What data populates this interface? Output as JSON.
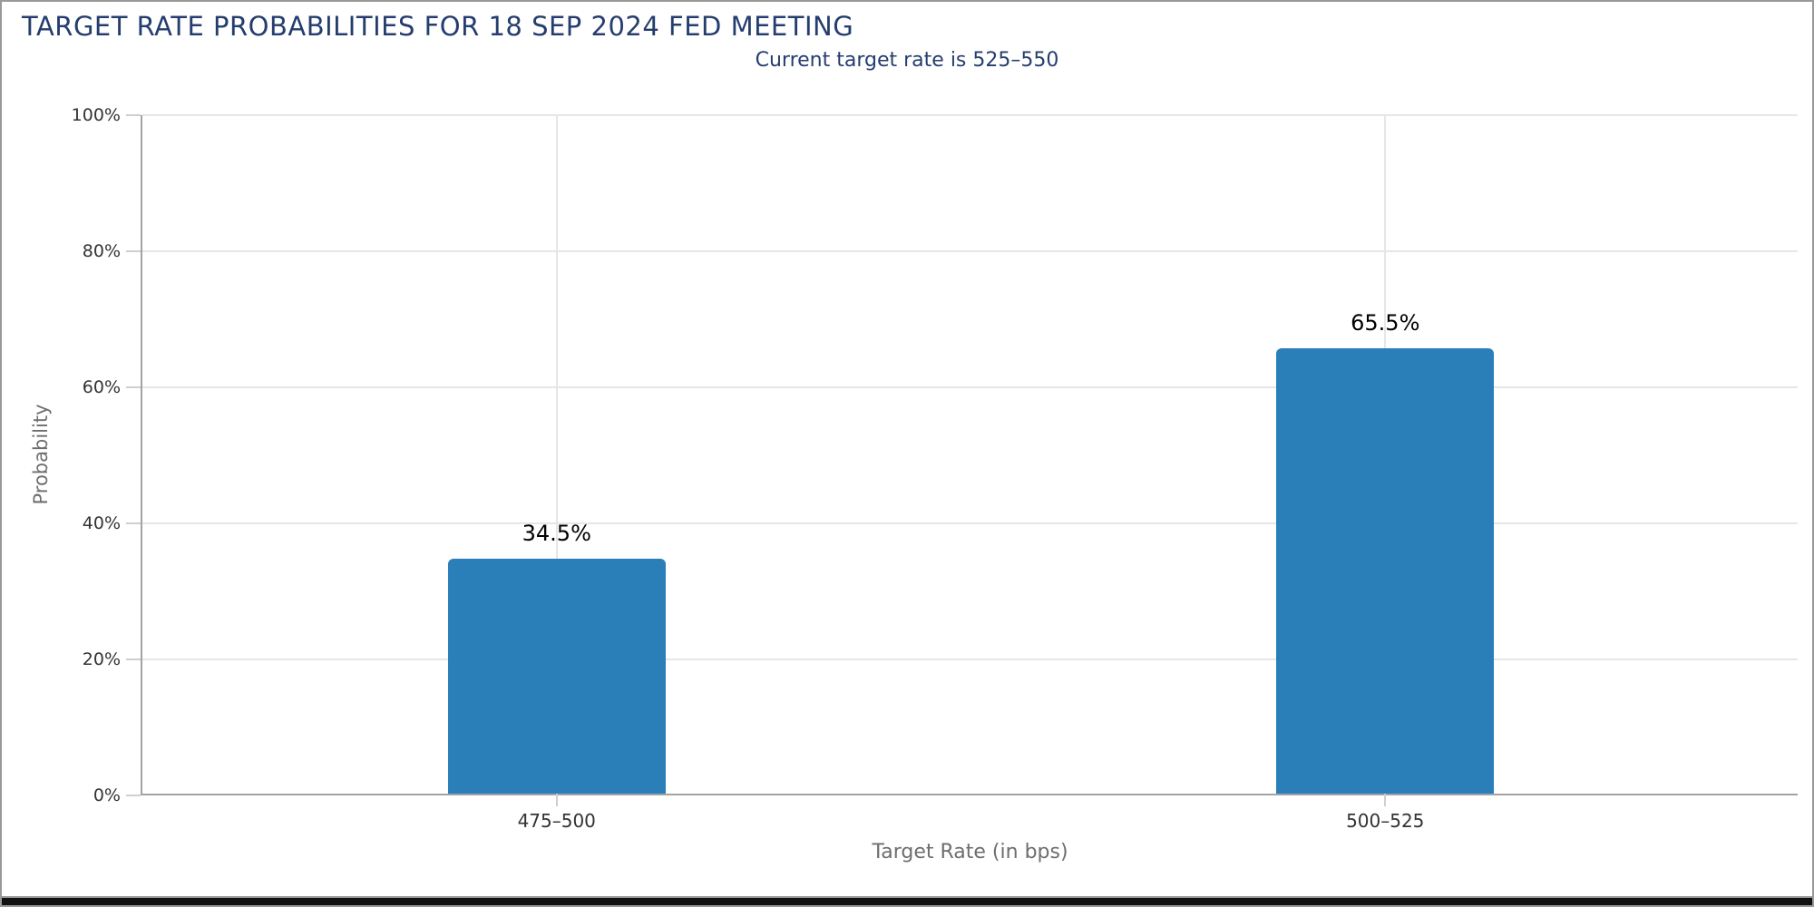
{
  "header": {
    "title": "TARGET RATE PROBABILITIES FOR 18 SEP 2024 FED MEETING",
    "subtitle": "Current target rate is 525–550"
  },
  "chart_data": {
    "type": "bar",
    "title": "TARGET RATE PROBABILITIES FOR 18 SEP 2024 FED MEETING",
    "subtitle": "Current target rate is 525–550",
    "categories": [
      "475–500",
      "500–525"
    ],
    "values": [
      34.5,
      65.5
    ],
    "data_labels": [
      "34.5%",
      "65.5%"
    ],
    "xlabel": "Target Rate (in bps)",
    "ylabel": "Probability",
    "ylim": [
      0,
      100
    ],
    "yticks": [
      0,
      20,
      40,
      60,
      80,
      100
    ],
    "ytick_labels": [
      "0%",
      "20%",
      "40%",
      "60%",
      "80%",
      "100%"
    ],
    "grid": true,
    "legend": "none",
    "colors": {
      "bar": "#2b7fb9",
      "title_text": "#253d6e",
      "subtitle_text": "#253d6e",
      "axis_line": "#a3a3a3",
      "gridline": "#e6e6e6",
      "tick_mark": "#cfcfcf",
      "tick_label": "#333333",
      "axis_title": "#6e6e6e",
      "data_label": "#000000",
      "frame_border": "#999999"
    }
  }
}
